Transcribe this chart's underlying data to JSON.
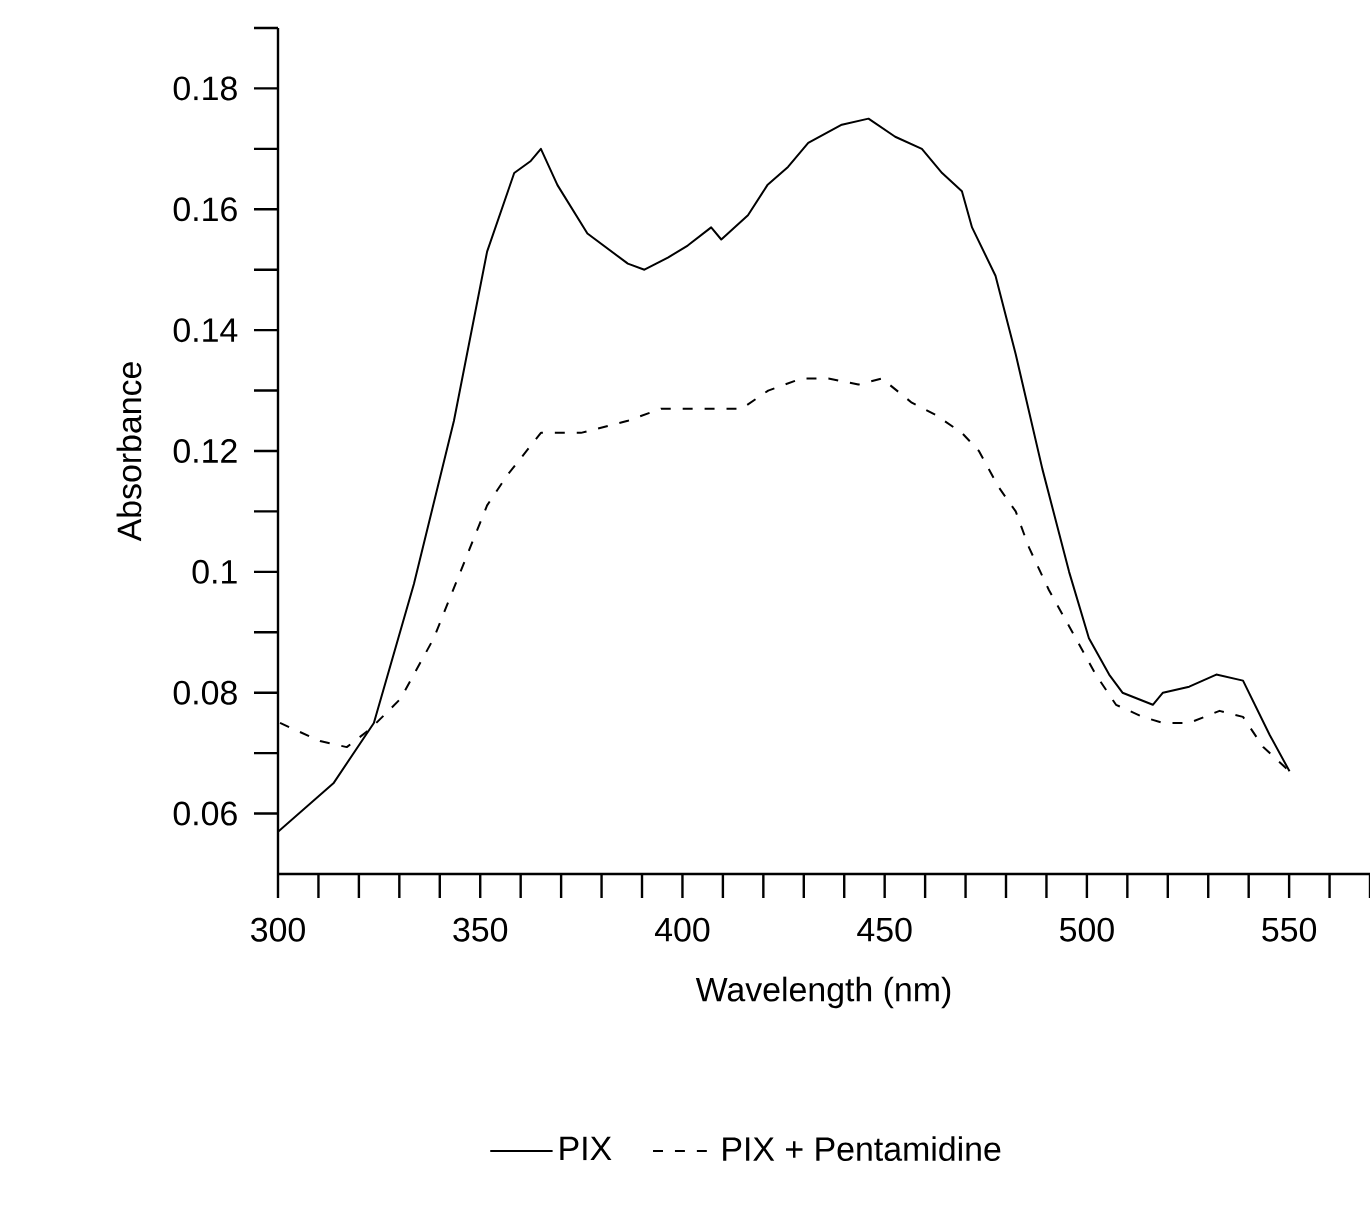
{
  "chart_data": {
    "type": "line",
    "xlabel": "Wavelength (nm)",
    "ylabel": "Absorbance",
    "xlim": [
      300,
      570
    ],
    "ylim": [
      0.05,
      0.19
    ],
    "xticks": [
      300,
      {
        "value": 310,
        "label": null
      },
      {
        "value": 320,
        "label": null
      },
      {
        "value": 330,
        "label": null
      },
      {
        "value": 340,
        "label": null
      },
      350,
      {
        "value": 360,
        "label": null
      },
      {
        "value": 370,
        "label": null
      },
      {
        "value": 380,
        "label": null
      },
      {
        "value": 390,
        "label": null
      },
      400,
      {
        "value": 410,
        "label": null
      },
      {
        "value": 420,
        "label": null
      },
      {
        "value": 430,
        "label": null
      },
      {
        "value": 440,
        "label": null
      },
      450,
      {
        "value": 460,
        "label": null
      },
      {
        "value": 470,
        "label": null
      },
      {
        "value": 480,
        "label": null
      },
      {
        "value": 490,
        "label": null
      },
      500,
      {
        "value": 510,
        "label": null
      },
      {
        "value": 520,
        "label": null
      },
      {
        "value": 530,
        "label": null
      },
      {
        "value": 540,
        "label": null
      },
      550,
      {
        "value": 560,
        "label": null
      },
      {
        "value": 570,
        "label": null
      }
    ],
    "yticks": [
      0.06,
      {
        "value": 0.07,
        "label": null
      },
      0.08,
      {
        "value": 0.09,
        "label": null
      },
      0.1,
      {
        "value": 0.11,
        "label": null
      },
      0.12,
      {
        "value": 0.13,
        "label": null
      },
      0.14,
      {
        "value": 0.15,
        "label": null
      },
      0.16,
      {
        "value": 0.17,
        "label": null
      },
      0.18,
      {
        "value": 0.19,
        "label": null
      }
    ],
    "grid": false,
    "legend": "bottom",
    "marker": "none",
    "series": [
      {
        "name": "PIX",
        "color": "#000000",
        "line_style": "solid",
        "x": [
          300,
          313.7,
          323.7,
          333.6,
          343.5,
          351.7,
          358.4,
          362.5,
          365,
          369.1,
          376.5,
          386.5,
          390.6,
          396.4,
          401.3,
          407.1,
          409.6,
          416.2,
          421,
          426.1,
          431.1,
          439.4,
          446,
          452.6,
          459.2,
          464.2,
          469.1,
          471.6,
          477.4,
          482.4,
          489,
          495.6,
          500.5,
          505.5,
          508.8,
          516.3,
          518.8,
          525.3,
          532,
          538.6,
          545.2,
          550.1
        ],
        "values": [
          0.057,
          0.065,
          0.075,
          0.098,
          0.125,
          0.153,
          0.166,
          0.168,
          0.17,
          0.164,
          0.156,
          0.151,
          0.15,
          0.152,
          0.154,
          0.157,
          0.155,
          0.159,
          0.164,
          0.167,
          0.171,
          0.174,
          0.175,
          0.172,
          0.17,
          0.166,
          0.163,
          0.157,
          0.149,
          0.136,
          0.117,
          0.1,
          0.089,
          0.083,
          0.08,
          0.078,
          0.08,
          0.081,
          0.083,
          0.082,
          0.073,
          0.067
        ]
      },
      {
        "name": "PIX + Pentamidine",
        "color": "#000000",
        "line_style": "dashed",
        "x": [
          300.5,
          310.4,
          317,
          322.8,
          330.3,
          338.5,
          345.1,
          351.7,
          356.7,
          365,
          374.9,
          386.5,
          394.7,
          403,
          414.6,
          421.2,
          429.5,
          436.1,
          443.5,
          449.3,
          456.7,
          462.5,
          469.1,
          473.3,
          478.2,
          482.4,
          485.7,
          490.6,
          495.6,
          502.2,
          507.2,
          513.8,
          518.8,
          525.3,
          532.8,
          538.6,
          543.6,
          550.1
        ],
        "values": [
          0.075,
          0.072,
          0.071,
          0.074,
          0.079,
          0.089,
          0.1,
          0.111,
          0.116,
          0.123,
          0.123,
          0.125,
          0.127,
          0.127,
          0.127,
          0.13,
          0.132,
          0.132,
          0.131,
          0.132,
          0.128,
          0.126,
          0.123,
          0.12,
          0.114,
          0.11,
          0.104,
          0.097,
          0.091,
          0.083,
          0.078,
          0.076,
          0.075,
          0.075,
          0.077,
          0.076,
          0.071,
          0.067
        ]
      }
    ]
  }
}
